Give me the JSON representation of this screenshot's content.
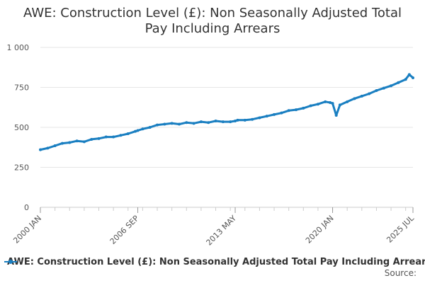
{
  "chart_data": {
    "type": "line",
    "title": "AWE: Construction Level (£): Non Seasonally Adjusted Total\nPay Including Arrears",
    "xlabel": "",
    "ylabel": "",
    "ylim": [
      0,
      1000
    ],
    "yticks": [
      0,
      250,
      500,
      750,
      1000
    ],
    "ytick_labels": [
      "0",
      "250",
      "500",
      "750",
      "1 000"
    ],
    "xtick_labels": [
      "2000 JAN",
      "2006 SEP",
      "2013 MAY",
      "2020 JAN",
      "2025 JUL"
    ],
    "xticks": [
      "2000-01",
      "2006-09",
      "2013-05",
      "2020-01",
      "2025-07"
    ],
    "grid": true,
    "legend_position": "bottom",
    "series": [
      {
        "name": "AWE: Construction Level (£): Non Seasonally Adjusted Total Pay Including Arrears",
        "color": "#1a7fc1",
        "x": [
          "2000-01",
          "2000-07",
          "2001-01",
          "2001-07",
          "2002-01",
          "2002-07",
          "2003-01",
          "2003-07",
          "2004-01",
          "2004-07",
          "2005-01",
          "2005-07",
          "2006-01",
          "2006-07",
          "2006-09",
          "2007-01",
          "2007-07",
          "2008-01",
          "2008-07",
          "2009-01",
          "2009-07",
          "2010-01",
          "2010-07",
          "2011-01",
          "2011-07",
          "2012-01",
          "2012-07",
          "2013-01",
          "2013-05",
          "2013-07",
          "2014-01",
          "2014-07",
          "2015-01",
          "2015-07",
          "2016-01",
          "2016-07",
          "2017-01",
          "2017-07",
          "2018-01",
          "2018-07",
          "2019-01",
          "2019-07",
          "2019-11",
          "2020-01",
          "2020-04",
          "2020-07",
          "2021-01",
          "2021-07",
          "2022-01",
          "2022-07",
          "2023-01",
          "2023-07",
          "2024-01",
          "2024-07",
          "2025-01",
          "2025-04",
          "2025-07"
        ],
        "values": [
          360,
          370,
          385,
          400,
          405,
          415,
          410,
          425,
          430,
          440,
          440,
          450,
          460,
          475,
          480,
          490,
          500,
          515,
          520,
          525,
          520,
          530,
          525,
          535,
          530,
          540,
          535,
          535,
          540,
          545,
          545,
          550,
          560,
          570,
          580,
          590,
          605,
          610,
          620,
          635,
          645,
          660,
          655,
          650,
          575,
          640,
          660,
          680,
          695,
          710,
          730,
          745,
          760,
          780,
          800,
          830,
          810
        ]
      }
    ]
  },
  "legend": {
    "label": "AWE: Construction Level (£): Non Seasonally Adjusted Total Pay Including Arrears"
  },
  "footer": {
    "source_label": "Source:"
  }
}
